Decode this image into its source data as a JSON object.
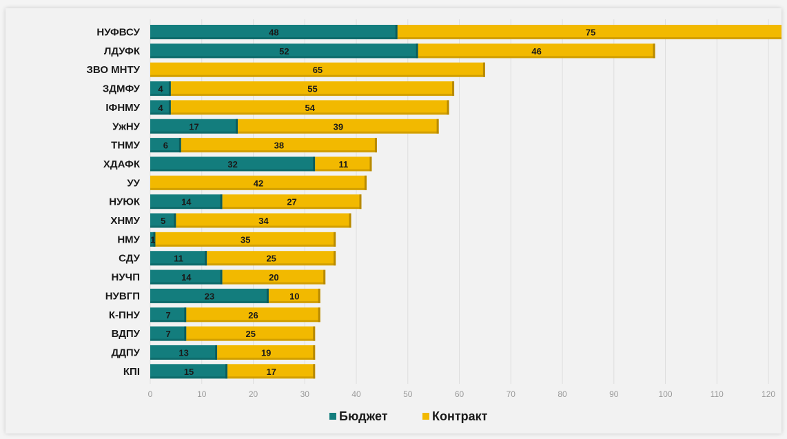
{
  "chart_data": {
    "type": "bar",
    "orientation": "horizontal",
    "stacked": true,
    "categories": [
      "НУФВСУ",
      "ЛДУФК",
      "ЗВО МНТУ",
      "ЗДМФУ",
      "ІФНМУ",
      "УжНУ",
      "ТНМУ",
      "ХДАФК",
      "УУ",
      "НУЮК",
      "ХНМУ",
      "НМУ",
      "СДУ",
      "НУЧП",
      "НУВГП",
      "К-ПНУ",
      "ВДПУ",
      "ДДПУ",
      "КПІ"
    ],
    "series": [
      {
        "name": "Бюджет",
        "color": "#137d7d",
        "values": [
          48,
          52,
          0,
          4,
          4,
          17,
          6,
          32,
          0,
          14,
          5,
          1,
          11,
          14,
          23,
          7,
          7,
          13,
          15
        ]
      },
      {
        "name": "Контракт",
        "color": "#f2b900",
        "values": [
          75,
          46,
          65,
          55,
          54,
          39,
          38,
          11,
          42,
          27,
          34,
          35,
          25,
          20,
          10,
          26,
          25,
          19,
          17
        ]
      }
    ],
    "xlim": [
      0,
      122
    ],
    "xticks": [
      0,
      10,
      20,
      30,
      40,
      50,
      60,
      70,
      80,
      90,
      100,
      110,
      120
    ],
    "grid": true,
    "legend_position": "bottom"
  }
}
